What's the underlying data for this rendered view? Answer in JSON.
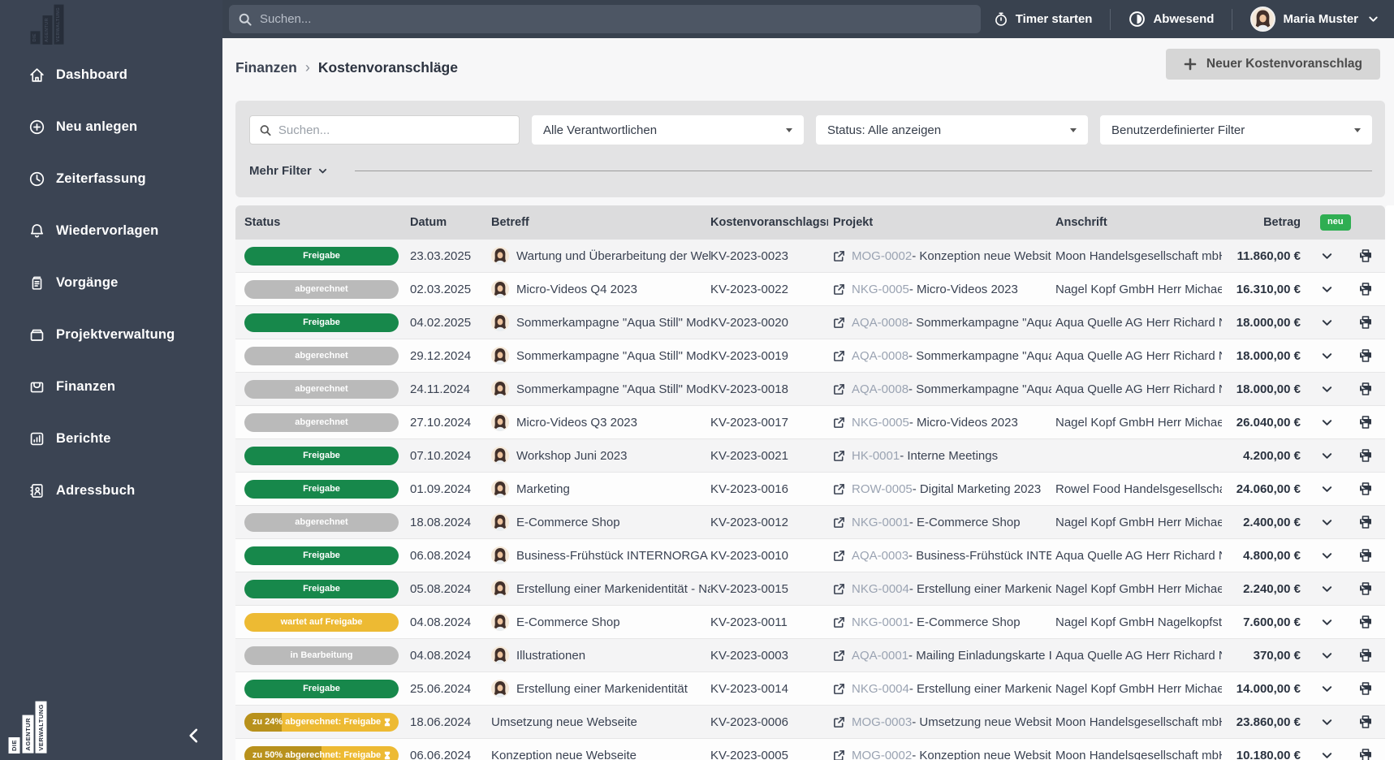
{
  "topbar": {
    "search_placeholder": "Suchen...",
    "timer_label": "Timer starten",
    "presence_label": "Abwesend",
    "user_name": "Maria Muster"
  },
  "sidebar": {
    "logo_lines": [
      "DIE",
      "AGENTUR",
      "VERWALTUNG"
    ],
    "items": [
      {
        "label": "Dashboard",
        "icon": "home"
      },
      {
        "label": "Neu anlegen",
        "icon": "plus-circle"
      },
      {
        "label": "Zeiterfassung",
        "icon": "clock"
      },
      {
        "label": "Wiedervorlagen",
        "icon": "bell"
      },
      {
        "label": "Vorgänge",
        "icon": "documents"
      },
      {
        "label": "Projektverwaltung",
        "icon": "archive-box"
      },
      {
        "label": "Finanzen",
        "icon": "wallet"
      },
      {
        "label": "Berichte",
        "icon": "bar-chart"
      },
      {
        "label": "Adressbuch",
        "icon": "address-book"
      }
    ]
  },
  "breadcrumb": {
    "parent": "Finanzen",
    "separator": "›",
    "current": "Kostenvoranschläge"
  },
  "page_actions": {
    "new_button_label": "Neuer Kostenvoranschlag"
  },
  "filters": {
    "search_placeholder": "Suchen...",
    "responsible_filter": "Alle Verantwortlichen",
    "status_filter": "Status: Alle anzeigen",
    "custom_filter": "Benutzerdefinierter Filter",
    "more_filters_label": "Mehr Filter"
  },
  "table": {
    "columns": [
      "Status",
      "Datum",
      "Betreff",
      "Kostenvoranschlagsn…",
      "Projekt",
      "Anschrift",
      "Betrag"
    ],
    "new_badge_label": "neu",
    "project_separator": " - ",
    "rows": [
      {
        "status": {
          "label": "Freigabe",
          "type": "green"
        },
        "datum": "23.03.2025",
        "has_avatar": true,
        "betreff": "Wartung und Überarbeitung der Websi…",
        "kv": "KV-2023-0023",
        "project_code": "MOG-0002",
        "project_name": "Konzeption neue Website",
        "anschrift": "Moon Handelsgesellschaft mbH F…",
        "betrag": "11.860,00 €"
      },
      {
        "status": {
          "label": "abgerechnet",
          "type": "gray"
        },
        "datum": "02.03.2025",
        "has_avatar": true,
        "betreff": "Micro-Videos Q4 2023",
        "kv": "KV-2023-0022",
        "project_code": "NKG-0005",
        "project_name": "Micro-Videos 2023",
        "anschrift": "Nagel Kopf GmbH Herr Michael …",
        "betrag": "16.310,00 €"
      },
      {
        "status": {
          "label": "Freigabe",
          "type": "green"
        },
        "datum": "04.02.2025",
        "has_avatar": true,
        "betreff": "Sommerkampagne \"Aqua Still\" Modul I",
        "kv": "KV-2023-0020",
        "project_code": "AQA-0008",
        "project_name": "Sommerkampagne \"Aqua Still\"",
        "anschrift": "Aqua Quelle AG Herr Richard Ne…",
        "betrag": "18.000,00 €"
      },
      {
        "status": {
          "label": "abgerechnet",
          "type": "gray"
        },
        "datum": "29.12.2024",
        "has_avatar": true,
        "betreff": "Sommerkampagne \"Aqua Still\" Modul II",
        "kv": "KV-2023-0019",
        "project_code": "AQA-0008",
        "project_name": "Sommerkampagne \"Aqua Still\"",
        "anschrift": "Aqua Quelle AG Herr Richard Ne…",
        "betrag": "18.000,00 €"
      },
      {
        "status": {
          "label": "abgerechnet",
          "type": "gray"
        },
        "datum": "24.11.2024",
        "has_avatar": true,
        "betreff": "Sommerkampagne \"Aqua Still\" Modul III",
        "kv": "KV-2023-0018",
        "project_code": "AQA-0008",
        "project_name": "Sommerkampagne \"Aqua Still\"",
        "anschrift": "Aqua Quelle AG Herr Richard Ne…",
        "betrag": "18.000,00 €"
      },
      {
        "status": {
          "label": "abgerechnet",
          "type": "gray"
        },
        "datum": "27.10.2024",
        "has_avatar": true,
        "betreff": "Micro-Videos Q3 2023",
        "kv": "KV-2023-0017",
        "project_code": "NKG-0005",
        "project_name": "Micro-Videos 2023",
        "anschrift": "Nagel Kopf GmbH Herr Michael …",
        "betrag": "26.040,00 €"
      },
      {
        "status": {
          "label": "Freigabe",
          "type": "green"
        },
        "datum": "07.10.2024",
        "has_avatar": true,
        "betreff": "Workshop Juni 2023",
        "kv": "KV-2023-0021",
        "project_code": "HK-0001",
        "project_name": "Interne Meetings",
        "anschrift": "",
        "betrag": "4.200,00 €"
      },
      {
        "status": {
          "label": "Freigabe",
          "type": "green"
        },
        "datum": "01.09.2024",
        "has_avatar": true,
        "betreff": "Marketing",
        "kv": "KV-2023-0016",
        "project_code": "ROW-0005",
        "project_name": "Digital Marketing 2023",
        "anschrift": "Rowel Food Handelsgesellschaft …",
        "betrag": "24.060,00 €"
      },
      {
        "status": {
          "label": "abgerechnet",
          "type": "gray"
        },
        "datum": "18.08.2024",
        "has_avatar": true,
        "betreff": "E-Commerce Shop",
        "kv": "KV-2023-0012",
        "project_code": "NKG-0001",
        "project_name": "E-Commerce Shop",
        "anschrift": "Nagel Kopf GmbH Herr Michael …",
        "betrag": "2.400,00 €"
      },
      {
        "status": {
          "label": "Freigabe",
          "type": "green"
        },
        "datum": "06.08.2024",
        "has_avatar": true,
        "betreff": "Business-Frühstück INTERNORGA",
        "kv": "KV-2023-0010",
        "project_code": "AQA-0003",
        "project_name": "Business-Frühstück INTERN…",
        "anschrift": "Aqua Quelle AG Herr Richard Ne…",
        "betrag": "4.800,00 €"
      },
      {
        "status": {
          "label": "Freigabe",
          "type": "green"
        },
        "datum": "05.08.2024",
        "has_avatar": true,
        "betreff": "Erstellung einer Markenidentität - Nach…",
        "kv": "KV-2023-0015",
        "project_code": "NKG-0004",
        "project_name": "Erstellung einer Markeniden…",
        "anschrift": "Nagel Kopf GmbH Herr Michael …",
        "betrag": "2.240,00 €"
      },
      {
        "status": {
          "label": "wartet auf Freigabe",
          "type": "yellow"
        },
        "datum": "04.08.2024",
        "has_avatar": true,
        "betreff": "E-Commerce Shop",
        "kv": "KV-2023-0011",
        "project_code": "NKG-0001",
        "project_name": "E-Commerce Shop",
        "anschrift": "Nagel Kopf GmbH Nagelkopfstra…",
        "betrag": "7.600,00 €"
      },
      {
        "status": {
          "label": "in Bearbeitung",
          "type": "gray"
        },
        "datum": "04.08.2024",
        "has_avatar": true,
        "betreff": "Illustrationen",
        "kv": "KV-2023-0003",
        "project_code": "AQA-0001",
        "project_name": "Mailing Einladungskarte INT…",
        "anschrift": "Aqua Quelle AG Herr Richard Ne…",
        "betrag": "370,00 €"
      },
      {
        "status": {
          "label": "Freigabe",
          "type": "green"
        },
        "datum": "25.06.2024",
        "has_avatar": true,
        "betreff": "Erstellung einer Markenidentität",
        "kv": "KV-2023-0014",
        "project_code": "NKG-0004",
        "project_name": "Erstellung einer Markeniden…",
        "anschrift": "Nagel Kopf GmbH Herr Michael …",
        "betrag": "14.000,00 €"
      },
      {
        "status": {
          "label": "zu 24% abgerechnet: Freigabe",
          "type": "progress",
          "pct": 24
        },
        "datum": "18.06.2024",
        "has_avatar": false,
        "betreff": "Umsetzung neue Webseite",
        "kv": "KV-2023-0006",
        "project_code": "MOG-0003",
        "project_name": "Umsetzung neue Website",
        "anschrift": "Moon Handelsgesellschaft mbH F…",
        "betrag": "23.860,00 €"
      },
      {
        "status": {
          "label": "zu 50% abgerechnet: Freigabe",
          "type": "progress",
          "pct": 50
        },
        "datum": "06.06.2024",
        "has_avatar": false,
        "betreff": "Konzeption neue Webseite",
        "kv": "KV-2023-0005",
        "project_code": "MOG-0002",
        "project_name": "Konzeption neue Website",
        "anschrift": "Moon Handelsgesellschaft mbH F…",
        "betrag": "10.180,00 €"
      }
    ]
  },
  "colors": {
    "status_green": "#17884B",
    "status_gray": "#BABABA",
    "status_yellow": "#EDBA33",
    "status_yellow_progress": "#B8911C",
    "new_badge_green": "#2FAE52",
    "sidebar_dark": "#3B4453"
  }
}
